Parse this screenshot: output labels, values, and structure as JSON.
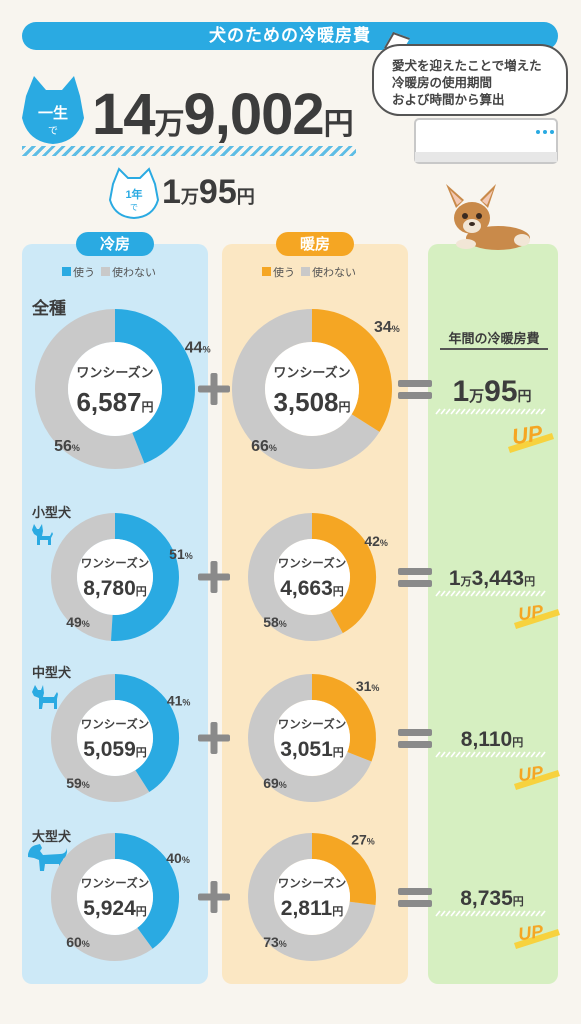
{
  "header": {
    "title": "犬のための冷暖房費",
    "note_lines": [
      "愛犬を迎えたことで増えた",
      "冷暖房の使用期間",
      "および時間から算出"
    ]
  },
  "totals": {
    "lifetime_badge": [
      "一生",
      "で"
    ],
    "lifetime_man": "14",
    "lifetime_man_unit": "万",
    "lifetime_rest": "9,002",
    "lifetime_yen": "円",
    "year_badge": [
      "1年",
      "で"
    ],
    "year_man": "1",
    "year_man_unit": "万",
    "year_rest": "95",
    "year_yen": "円"
  },
  "columns": {
    "cooling": "冷房",
    "heating": "暖房",
    "legend_use": "使う",
    "legend_not_use": "使わない",
    "annual_heading": "年間の冷暖房費"
  },
  "colors": {
    "cooling": "#2aaae2",
    "heating": "#f5a623",
    "unused": "#c9c9c9",
    "up": "#f5a623"
  },
  "labels": {
    "one_season": "ワンシーズン",
    "yen": "円",
    "percent": "%",
    "up": "UP",
    "plus": "+",
    "equals": "="
  },
  "chart_data": {
    "type": "pie",
    "categories": [
      "全種",
      "小型犬",
      "中型犬",
      "大型犬"
    ],
    "series": [
      {
        "name": "冷房",
        "use_percent": [
          44,
          51,
          41,
          40
        ],
        "not_use_percent": [
          56,
          49,
          59,
          60
        ],
        "season_cost": [
          "6,587",
          "8,780",
          "5,059",
          "5,924"
        ]
      },
      {
        "name": "暖房",
        "use_percent": [
          34,
          42,
          31,
          27
        ],
        "not_use_percent": [
          66,
          58,
          69,
          73
        ],
        "season_cost": [
          "3,508",
          "4,663",
          "3,051",
          "2,811"
        ]
      }
    ],
    "annual_cost": [
      {
        "man": "1",
        "man_unit": "万",
        "rest": "95",
        "yen": "円"
      },
      {
        "man": "1",
        "man_unit": "万",
        "rest": "3,443",
        "yen": "円"
      },
      {
        "man": "",
        "man_unit": "",
        "rest": "8,110",
        "yen": "円"
      },
      {
        "man": "",
        "man_unit": "",
        "rest": "8,735",
        "yen": "円"
      }
    ]
  }
}
